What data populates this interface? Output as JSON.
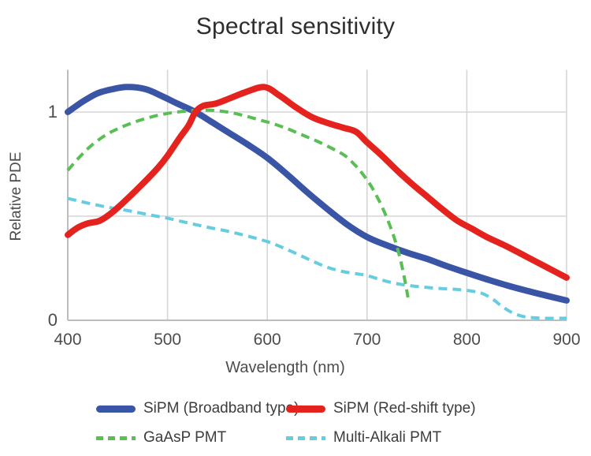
{
  "chart": {
    "title": "Spectral sensitivity",
    "x_axis_label": "Wavelength (nm)",
    "y_axis_label": "Relative PDE"
  },
  "chart_data": {
    "type": "line",
    "title": "Spectral sensitivity",
    "xlabel": "Wavelength (nm)",
    "ylabel": "Relative PDE",
    "xlim": [
      400,
      900
    ],
    "ylim": [
      0,
      1.2
    ],
    "x_ticks": [
      400,
      500,
      600,
      700,
      800,
      900
    ],
    "y_ticks": [
      0,
      1
    ],
    "y_gridlines": [
      0.5,
      1
    ],
    "grid": true,
    "legend_position": "bottom",
    "colors": {
      "grid": "#d6d6d6",
      "axis": "#bdbdbd",
      "tick_text": "#4c4c4c",
      "axis_label_text": "#4d4d4d"
    },
    "series": [
      {
        "name": "SiPM (Broadband type)",
        "color": "#3a55a5",
        "style": "solid",
        "points": [
          [
            400,
            1.0
          ],
          [
            415,
            1.05
          ],
          [
            430,
            1.09
          ],
          [
            445,
            1.11
          ],
          [
            460,
            1.12
          ],
          [
            478,
            1.11
          ],
          [
            495,
            1.075
          ],
          [
            510,
            1.04
          ],
          [
            528,
            1.0
          ],
          [
            545,
            0.95
          ],
          [
            560,
            0.905
          ],
          [
            580,
            0.845
          ],
          [
            600,
            0.78
          ],
          [
            620,
            0.7
          ],
          [
            640,
            0.615
          ],
          [
            660,
            0.535
          ],
          [
            680,
            0.46
          ],
          [
            700,
            0.4
          ],
          [
            720,
            0.36
          ],
          [
            740,
            0.325
          ],
          [
            760,
            0.295
          ],
          [
            780,
            0.26
          ],
          [
            800,
            0.228
          ],
          [
            820,
            0.197
          ],
          [
            840,
            0.168
          ],
          [
            860,
            0.142
          ],
          [
            880,
            0.118
          ],
          [
            900,
            0.095
          ]
        ]
      },
      {
        "name": "SiPM (Red-shift type)",
        "color": "#e5231e",
        "style": "solid",
        "points": [
          [
            400,
            0.41
          ],
          [
            410,
            0.445
          ],
          [
            420,
            0.465
          ],
          [
            432,
            0.478
          ],
          [
            445,
            0.52
          ],
          [
            460,
            0.585
          ],
          [
            475,
            0.655
          ],
          [
            490,
            0.73
          ],
          [
            500,
            0.79
          ],
          [
            512,
            0.875
          ],
          [
            521,
            0.935
          ],
          [
            528,
            1.0
          ],
          [
            536,
            1.03
          ],
          [
            548,
            1.04
          ],
          [
            562,
            1.065
          ],
          [
            578,
            1.095
          ],
          [
            597,
            1.12
          ],
          [
            612,
            1.08
          ],
          [
            628,
            1.025
          ],
          [
            645,
            0.975
          ],
          [
            662,
            0.945
          ],
          [
            676,
            0.925
          ],
          [
            689,
            0.905
          ],
          [
            700,
            0.855
          ],
          [
            715,
            0.79
          ],
          [
            730,
            0.72
          ],
          [
            745,
            0.655
          ],
          [
            760,
            0.595
          ],
          [
            775,
            0.535
          ],
          [
            790,
            0.48
          ],
          [
            805,
            0.44
          ],
          [
            820,
            0.4
          ],
          [
            840,
            0.355
          ],
          [
            860,
            0.305
          ],
          [
            880,
            0.255
          ],
          [
            900,
            0.205
          ]
        ]
      },
      {
        "name": "GaAsP PMT",
        "color": "#59bf55",
        "style": "dashed",
        "points": [
          [
            400,
            0.72
          ],
          [
            412,
            0.785
          ],
          [
            425,
            0.845
          ],
          [
            440,
            0.895
          ],
          [
            455,
            0.93
          ],
          [
            470,
            0.957
          ],
          [
            485,
            0.978
          ],
          [
            500,
            0.993
          ],
          [
            515,
            1.003
          ],
          [
            530,
            1.008
          ],
          [
            545,
            1.008
          ],
          [
            560,
            1.0
          ],
          [
            575,
            0.985
          ],
          [
            590,
            0.965
          ],
          [
            605,
            0.945
          ],
          [
            620,
            0.92
          ],
          [
            635,
            0.89
          ],
          [
            650,
            0.86
          ],
          [
            665,
            0.825
          ],
          [
            678,
            0.79
          ],
          [
            688,
            0.745
          ],
          [
            696,
            0.7
          ],
          [
            704,
            0.645
          ],
          [
            712,
            0.575
          ],
          [
            720,
            0.49
          ],
          [
            727,
            0.4
          ],
          [
            733,
            0.3
          ],
          [
            738,
            0.19
          ],
          [
            741,
            0.11
          ]
        ]
      },
      {
        "name": "Multi-Alkali PMT",
        "color": "#66cde0",
        "style": "dashed",
        "points": [
          [
            400,
            0.585
          ],
          [
            420,
            0.563
          ],
          [
            440,
            0.543
          ],
          [
            460,
            0.527
          ],
          [
            480,
            0.508
          ],
          [
            500,
            0.49
          ],
          [
            520,
            0.468
          ],
          [
            540,
            0.447
          ],
          [
            560,
            0.428
          ],
          [
            580,
            0.405
          ],
          [
            600,
            0.378
          ],
          [
            615,
            0.35
          ],
          [
            630,
            0.318
          ],
          [
            645,
            0.285
          ],
          [
            660,
            0.255
          ],
          [
            675,
            0.235
          ],
          [
            690,
            0.223
          ],
          [
            700,
            0.215
          ],
          [
            715,
            0.193
          ],
          [
            730,
            0.176
          ],
          [
            745,
            0.165
          ],
          [
            760,
            0.158
          ],
          [
            775,
            0.152
          ],
          [
            790,
            0.148
          ],
          [
            805,
            0.14
          ],
          [
            815,
            0.13
          ],
          [
            825,
            0.105
          ],
          [
            835,
            0.068
          ],
          [
            845,
            0.038
          ],
          [
            855,
            0.02
          ],
          [
            865,
            0.013
          ],
          [
            880,
            0.01
          ],
          [
            900,
            0.01
          ]
        ]
      }
    ]
  }
}
